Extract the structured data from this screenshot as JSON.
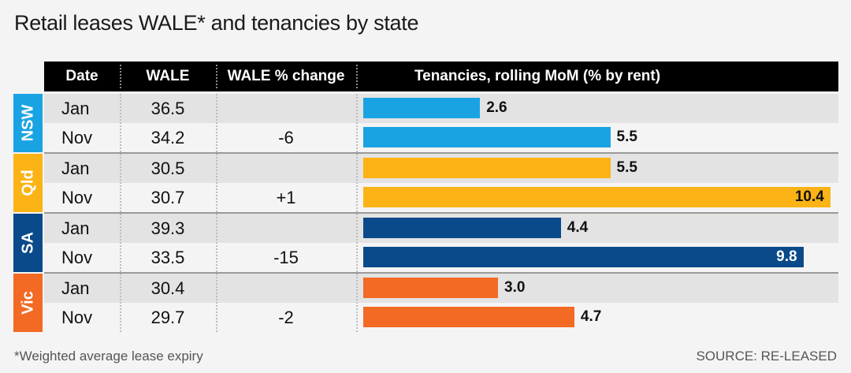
{
  "title": "Retail leases WALE* and tenancies by state",
  "headers": {
    "date": "Date",
    "wale": "WALE",
    "change": "WALE % change",
    "tenancies": "Tenancies, rolling MoM (% by rent)"
  },
  "states": [
    {
      "name": "NSW",
      "color": "#1aa3e3",
      "change": "-6",
      "rows": [
        {
          "date": "Jan",
          "wale": "36.5",
          "tenancies": 2.6,
          "label": "2.6"
        },
        {
          "date": "Nov",
          "wale": "34.2",
          "tenancies": 5.5,
          "label": "5.5"
        }
      ]
    },
    {
      "name": "Qld",
      "color": "#fbb316",
      "change": "+1",
      "rows": [
        {
          "date": "Jan",
          "wale": "30.5",
          "tenancies": 5.5,
          "label": "5.5"
        },
        {
          "date": "Nov",
          "wale": "30.7",
          "tenancies": 10.4,
          "label": "10.4"
        }
      ]
    },
    {
      "name": "SA",
      "color": "#0a4a8a",
      "change": "-15",
      "rows": [
        {
          "date": "Jan",
          "wale": "39.3",
          "tenancies": 4.4,
          "label": "4.4"
        },
        {
          "date": "Nov",
          "wale": "33.5",
          "tenancies": 9.8,
          "label": "9.8"
        }
      ]
    },
    {
      "name": "Vic",
      "color": "#f26a24",
      "change": "-2",
      "rows": [
        {
          "date": "Jan",
          "wale": "30.4",
          "tenancies": 3.0,
          "label": "3.0"
        },
        {
          "date": "Nov",
          "wale": "29.7",
          "tenancies": 4.7,
          "label": "4.7"
        }
      ]
    }
  ],
  "chart_data": {
    "type": "bar",
    "title": "Retail leases WALE* and tenancies by state",
    "categories": [
      "NSW Jan",
      "NSW Nov",
      "Qld Jan",
      "Qld Nov",
      "SA Jan",
      "SA Nov",
      "Vic Jan",
      "Vic Nov"
    ],
    "series": [
      {
        "name": "Tenancies, rolling MoM (% by rent)",
        "values": [
          2.6,
          5.5,
          5.5,
          10.4,
          4.4,
          9.8,
          3.0,
          4.7
        ]
      }
    ],
    "table": {
      "WALE": [
        36.5,
        34.2,
        30.5,
        30.7,
        39.3,
        33.5,
        30.4,
        29.7
      ],
      "WALE % change": {
        "NSW": -6,
        "Qld": 1,
        "SA": -15,
        "Vic": -2
      }
    }
  },
  "footnote": "*Weighted average lease expiry",
  "source": "SOURCE: RE-LEASED"
}
